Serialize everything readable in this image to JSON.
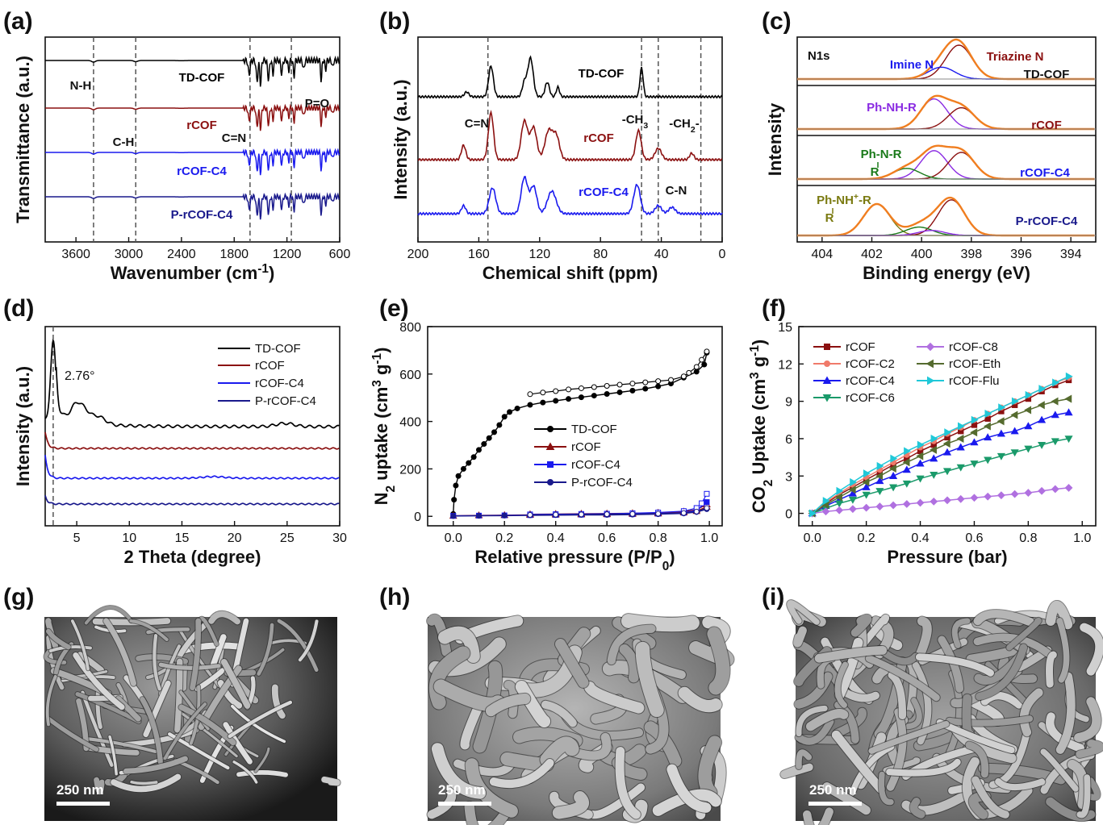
{
  "panels": {
    "a": "(a)",
    "b": "(b)",
    "c": "(c)",
    "d": "(d)",
    "e": "(e)",
    "f": "(f)",
    "g": "(g)",
    "h": "(h)",
    "i": "(i)"
  },
  "sem": {
    "g_scale": "250 nm",
    "h_scale": "250 nm",
    "i_scale": "250 nm"
  },
  "chart_data": [
    {
      "id": "a",
      "type": "line",
      "xlabel": "Wavenumber (cm⁻¹)",
      "ylabel": "Transmittance (a.u.)",
      "xlim": [
        3950,
        600
      ],
      "x_reversed": true,
      "xticks": [
        3600,
        3000,
        2400,
        1800,
        1200,
        600
      ],
      "y_ticks_shown": false,
      "series": [
        {
          "name": "TD-COF",
          "color": "#000000",
          "offset": 3.0
        },
        {
          "name": "rCOF",
          "color": "#8b1010",
          "offset": 2.0
        },
        {
          "name": "rCOF-C4",
          "color": "#1a1aee",
          "offset": 1.0
        },
        {
          "name": "P-rCOF-C4",
          "color": "#1a1a8c",
          "offset": 0.0
        }
      ],
      "reference_lines": [
        3400,
        2920,
        1620,
        1150
      ],
      "annotations": [
        {
          "text": "N-H",
          "color": "#111111"
        },
        {
          "text": "C-H",
          "color": "#111111"
        },
        {
          "text": "C=N",
          "color": "#111111"
        },
        {
          "text": "P=O",
          "color": "#111111"
        }
      ]
    },
    {
      "id": "b",
      "type": "line",
      "xlabel": "Chemical shift (ppm)",
      "ylabel": "Intensity (a.u.)",
      "xlim": [
        200,
        0
      ],
      "x_reversed": true,
      "xticks": [
        200,
        160,
        120,
        80,
        40,
        0
      ],
      "y_ticks_shown": false,
      "series": [
        {
          "name": "TD-COF",
          "color": "#000000",
          "offset": 2.0
        },
        {
          "name": "rCOF",
          "color": "#8b1010",
          "offset": 1.0
        },
        {
          "name": "rCOF-C4",
          "color": "#1a1aee",
          "offset": 0.0
        }
      ],
      "reference_lines": [
        154,
        53,
        42,
        14
      ],
      "annotations": [
        {
          "text": "C=N",
          "color": "#111111"
        },
        {
          "text": "-CH",
          "sub": "3",
          "color": "#111111"
        },
        {
          "text": "-CH",
          "sub": "2",
          "after": "-",
          "color": "#111111"
        },
        {
          "text": "C-N",
          "color": "#111111"
        }
      ]
    },
    {
      "id": "c",
      "type": "line",
      "xlabel": "Binding energy (eV)",
      "ylabel": "Intensity",
      "xlim": [
        405,
        393
      ],
      "x_reversed": true,
      "xticks": [
        404,
        402,
        400,
        398,
        396,
        394
      ],
      "y_ticks_shown": false,
      "subtitle": "N1s",
      "series": [
        {
          "name": "TD-COF",
          "color": "#111111",
          "peaks": [
            {
              "center": 398.5,
              "amp": 1.0
            },
            {
              "center": 399.2,
              "amp": 0.35
            }
          ]
        },
        {
          "name": "rCOF",
          "color": "#8b1010",
          "peaks": [
            {
              "center": 399.5,
              "amp": 0.85
            },
            {
              "center": 398.4,
              "amp": 0.6
            }
          ]
        },
        {
          "name": "rCOF-C4",
          "color": "#1a1aee",
          "peaks": [
            {
              "center": 399.5,
              "amp": 0.8
            },
            {
              "center": 398.4,
              "amp": 0.75
            },
            {
              "center": 400.6,
              "amp": 0.3
            }
          ]
        },
        {
          "name": "P-rCOF-C4",
          "color": "#1a1a8c",
          "peaks": [
            {
              "center": 401.8,
              "amp": 0.75
            },
            {
              "center": 398.8,
              "amp": 0.85
            },
            {
              "center": 400.1,
              "amp": 0.2
            },
            {
              "center": 399.6,
              "amp": 0.12
            }
          ]
        }
      ],
      "annotations": [
        {
          "text": "Imine N",
          "color": "#1a1aee"
        },
        {
          "text": "Triazine N",
          "color": "#8b1010"
        },
        {
          "text": "Ph-NH-R",
          "color": "#8a2be2"
        },
        {
          "text": "Ph-N-R",
          "color": "#1a7a1a"
        },
        {
          "text": "R",
          "color": "#1a7a1a"
        },
        {
          "text": "Ph-NH",
          "sup": "+",
          "after": "-R",
          "color": "#7a7a10"
        },
        {
          "text": "R",
          "color": "#7a7a10"
        }
      ]
    },
    {
      "id": "d",
      "type": "line",
      "xlabel": "2 Theta (degree)",
      "ylabel": "Intensity (a.u.)",
      "xlim": [
        2,
        30
      ],
      "xticks": [
        5,
        10,
        15,
        20,
        25,
        30
      ],
      "y_ticks_shown": false,
      "reference_lines": [
        2.76
      ],
      "annotations": [
        {
          "text": "2.76°",
          "color": "#111111"
        }
      ],
      "legend_position": "top-right",
      "series": [
        {
          "name": "TD-COF",
          "color": "#000000"
        },
        {
          "name": "rCOF",
          "color": "#8b1010"
        },
        {
          "name": "rCOF-C4",
          "color": "#1a1aee"
        },
        {
          "name": "P-rCOF-C4",
          "color": "#1a1a8c"
        }
      ]
    },
    {
      "id": "e",
      "type": "line",
      "xlabel": "Relative pressure (P/P₀)",
      "ylabel": "N₂ uptake (cm³ g⁻¹)",
      "xlim": [
        -0.1,
        1.05
      ],
      "ylim": [
        -40,
        800
      ],
      "xticks": [
        0.0,
        0.2,
        0.4,
        0.6,
        0.8,
        1.0
      ],
      "yticks": [
        0,
        200,
        400,
        600,
        800
      ],
      "legend_position": "center",
      "series": [
        {
          "name": "TD-COF",
          "color": "#000000",
          "marker": "circle",
          "adsorption": {
            "x": [
              0.0,
              0.003,
              0.01,
              0.02,
              0.04,
              0.06,
              0.08,
              0.1,
              0.12,
              0.14,
              0.16,
              0.18,
              0.2,
              0.22,
              0.25,
              0.3,
              0.35,
              0.4,
              0.45,
              0.5,
              0.55,
              0.6,
              0.65,
              0.7,
              0.75,
              0.8,
              0.85,
              0.9,
              0.95,
              0.98,
              0.99
            ],
            "y": [
              10,
              70,
              130,
              170,
              200,
              225,
              250,
              280,
              305,
              330,
              355,
              385,
              420,
              440,
              455,
              470,
              480,
              487,
              495,
              502,
              509,
              516,
              523,
              530,
              538,
              548,
              560,
              585,
              610,
              640,
              690
            ]
          },
          "desorption": {
            "x": [
              0.99,
              0.97,
              0.95,
              0.92,
              0.9,
              0.85,
              0.8,
              0.75,
              0.7,
              0.65,
              0.6,
              0.55,
              0.5,
              0.45,
              0.4,
              0.35,
              0.3
            ],
            "y": [
              695,
              660,
              630,
              605,
              590,
              575,
              570,
              565,
              560,
              555,
              550,
              545,
              540,
              535,
              528,
              522,
              515
            ]
          }
        },
        {
          "name": "rCOF",
          "color": "#8b1010",
          "marker": "triangle",
          "adsorption": {
            "x": [
              0.0,
              0.1,
              0.2,
              0.3,
              0.4,
              0.5,
              0.6,
              0.7,
              0.8,
              0.9,
              0.95,
              0.99
            ],
            "y": [
              2,
              4,
              5,
              6,
              7,
              8,
              9,
              10,
              12,
              16,
              22,
              40
            ]
          },
          "desorption": {
            "x": [
              0.99,
              0.95,
              0.9,
              0.8,
              0.7,
              0.6,
              0.5,
              0.4,
              0.3
            ],
            "y": [
              50,
              28,
              20,
              15,
              13,
              12,
              11,
              10,
              9
            ]
          }
        },
        {
          "name": "rCOF-C4",
          "color": "#1a1aee",
          "marker": "square",
          "adsorption": {
            "x": [
              0.0,
              0.1,
              0.2,
              0.3,
              0.4,
              0.5,
              0.6,
              0.7,
              0.8,
              0.9,
              0.95,
              0.99
            ],
            "y": [
              2,
              3,
              4,
              5,
              6,
              7,
              8,
              9,
              11,
              15,
              25,
              60
            ]
          },
          "desorption": {
            "x": [
              0.99,
              0.97,
              0.95,
              0.9,
              0.8,
              0.7,
              0.6,
              0.5,
              0.4,
              0.3
            ],
            "y": [
              95,
              55,
              35,
              22,
              16,
              13,
              11,
              10,
              9,
              8
            ]
          }
        },
        {
          "name": "P-rCOF-C4",
          "color": "#1a1a8c",
          "marker": "circle",
          "adsorption": {
            "x": [
              0.0,
              0.1,
              0.2,
              0.3,
              0.4,
              0.5,
              0.6,
              0.7,
              0.8,
              0.9,
              0.95,
              0.99
            ],
            "y": [
              1,
              2,
              3,
              4,
              5,
              6,
              6,
              7,
              9,
              12,
              18,
              30
            ]
          },
          "desorption": {
            "x": [
              0.99,
              0.95,
              0.9,
              0.8,
              0.7,
              0.6,
              0.5,
              0.4,
              0.3
            ],
            "y": [
              35,
              20,
              14,
              11,
              10,
              9,
              8,
              7,
              6
            ]
          }
        }
      ]
    },
    {
      "id": "f",
      "type": "line",
      "xlabel": "Pressure (bar)",
      "ylabel": "CO₂ Uptake (cm³ g⁻¹)",
      "xlim": [
        -0.05,
        1.05
      ],
      "ylim": [
        -1,
        15
      ],
      "xticks": [
        0.0,
        0.2,
        0.4,
        0.6,
        0.8,
        1.0
      ],
      "yticks": [
        0,
        3,
        6,
        9,
        12,
        15
      ],
      "legend_position": "top-left",
      "x": [
        0.0,
        0.05,
        0.1,
        0.15,
        0.2,
        0.25,
        0.3,
        0.35,
        0.4,
        0.45,
        0.5,
        0.55,
        0.6,
        0.65,
        0.7,
        0.75,
        0.8,
        0.85,
        0.9,
        0.95
      ],
      "series": [
        {
          "name": "rCOF",
          "color": "#8b1010",
          "marker": "square",
          "values": [
            0,
            0.8,
            1.5,
            2.1,
            2.7,
            3.3,
            3.9,
            4.4,
            5.0,
            5.5,
            6.1,
            6.6,
            7.1,
            7.6,
            8.2,
            8.7,
            9.2,
            9.8,
            10.3,
            10.7
          ]
        },
        {
          "name": "rCOF-C2",
          "color": "#f07a6a",
          "marker": "circle",
          "values": [
            0,
            0.9,
            1.6,
            2.3,
            2.9,
            3.5,
            4.1,
            4.7,
            5.3,
            5.8,
            6.4,
            6.9,
            7.5,
            8.0,
            8.5,
            9.0,
            9.5,
            10.0,
            10.5,
            10.9
          ]
        },
        {
          "name": "rCOF-C4",
          "color": "#1a1aee",
          "marker": "triangle",
          "values": [
            0,
            0.6,
            1.1,
            1.6,
            2.1,
            2.6,
            3.0,
            3.5,
            4.0,
            4.4,
            4.9,
            5.3,
            5.7,
            6.1,
            6.4,
            6.6,
            7.0,
            7.5,
            7.9,
            8.1
          ]
        },
        {
          "name": "rCOF-C6",
          "color": "#1a9a6a",
          "marker": "triangle-down",
          "values": [
            0,
            0.4,
            0.8,
            1.1,
            1.5,
            1.8,
            2.1,
            2.4,
            2.8,
            3.1,
            3.4,
            3.7,
            4.0,
            4.3,
            4.6,
            4.9,
            5.2,
            5.5,
            5.8,
            6.0
          ]
        },
        {
          "name": "rCOF-C8",
          "color": "#b070e0",
          "marker": "diamond",
          "values": [
            0,
            0.15,
            0.25,
            0.35,
            0.45,
            0.55,
            0.65,
            0.75,
            0.85,
            0.95,
            1.05,
            1.15,
            1.25,
            1.35,
            1.45,
            1.55,
            1.65,
            1.8,
            1.95,
            2.05
          ]
        },
        {
          "name": "rCOF-Eth",
          "color": "#556b2f",
          "marker": "triangle-left",
          "values": [
            0,
            0.7,
            1.3,
            1.9,
            2.5,
            3.0,
            3.6,
            4.1,
            4.6,
            5.1,
            5.6,
            6.0,
            6.5,
            7.0,
            7.4,
            7.9,
            8.3,
            8.7,
            9.0,
            9.2
          ]
        },
        {
          "name": "rCOF-Flu",
          "color": "#20c8d8",
          "marker": "triangle-right",
          "values": [
            0,
            1.0,
            1.8,
            2.5,
            3.2,
            3.8,
            4.4,
            5.0,
            5.5,
            6.0,
            6.5,
            7.0,
            7.5,
            8.0,
            8.5,
            9.0,
            9.5,
            10.0,
            10.5,
            11.0
          ]
        }
      ]
    }
  ]
}
